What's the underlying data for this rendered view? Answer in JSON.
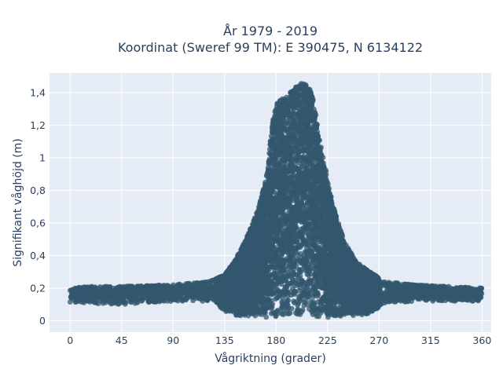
{
  "chart_data": {
    "type": "scatter",
    "title_lines": [
      "År 1979 - 2019",
      "Koordinat (Sweref 99 TM): E 390475, N 6134122"
    ],
    "xlabel": "Vågriktning (grader)",
    "ylabel": "Signifikant våghöjd (m)",
    "xlim": [
      -18,
      368
    ],
    "ylim": [
      -0.07,
      1.52
    ],
    "x_ticks": [
      0,
      45,
      90,
      135,
      180,
      225,
      270,
      315,
      360
    ],
    "x_tick_labels": [
      "0",
      "45",
      "90",
      "135",
      "180",
      "225",
      "270",
      "315",
      "360"
    ],
    "y_ticks": [
      0,
      0.2,
      0.4,
      0.6,
      0.8,
      1,
      1.2,
      1.4
    ],
    "y_tick_labels": [
      "0",
      "0,2",
      "0,4",
      "0,6",
      "0,8",
      "1",
      "1,2",
      "1,4"
    ],
    "grid": true,
    "marker_color": "#33576e",
    "plot_background": "#e5ecf6",
    "envelope_upper": [
      [
        0,
        0.2
      ],
      [
        20,
        0.21
      ],
      [
        45,
        0.21
      ],
      [
        90,
        0.22
      ],
      [
        120,
        0.24
      ],
      [
        135,
        0.28
      ],
      [
        145,
        0.38
      ],
      [
        155,
        0.52
      ],
      [
        165,
        0.7
      ],
      [
        172,
        0.9
      ],
      [
        175,
        1.1
      ],
      [
        178,
        1.28
      ],
      [
        182,
        1.35
      ],
      [
        188,
        1.37
      ],
      [
        195,
        1.42
      ],
      [
        202,
        1.46
      ],
      [
        210,
        1.44
      ],
      [
        214,
        1.3
      ],
      [
        218,
        1.12
      ],
      [
        222,
        1.0
      ],
      [
        225,
        0.85
      ],
      [
        232,
        0.65
      ],
      [
        240,
        0.48
      ],
      [
        250,
        0.36
      ],
      [
        262,
        0.3
      ],
      [
        275,
        0.24
      ],
      [
        300,
        0.22
      ],
      [
        330,
        0.21
      ],
      [
        360,
        0.2
      ]
    ],
    "envelope_lower": [
      [
        0,
        0.11
      ],
      [
        45,
        0.1
      ],
      [
        90,
        0.12
      ],
      [
        125,
        0.12
      ],
      [
        135,
        0.06
      ],
      [
        145,
        0.03
      ],
      [
        180,
        0.02
      ],
      [
        225,
        0.02
      ],
      [
        260,
        0.04
      ],
      [
        275,
        0.1
      ],
      [
        300,
        0.12
      ],
      [
        330,
        0.12
      ],
      [
        360,
        0.12
      ]
    ]
  }
}
